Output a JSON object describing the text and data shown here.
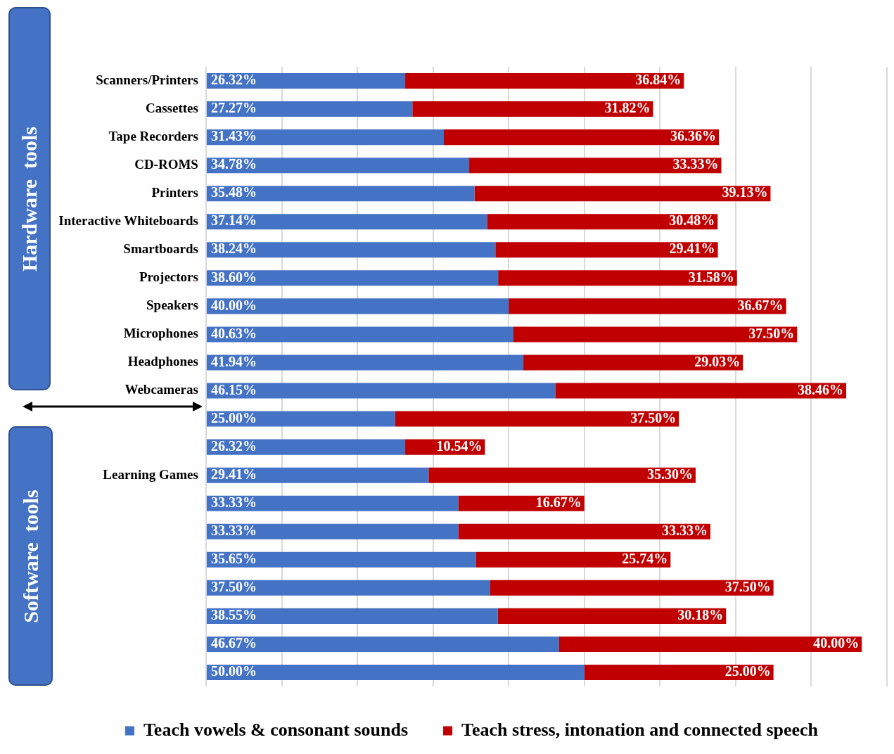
{
  "chart_data": {
    "type": "bar",
    "orientation": "horizontal",
    "stacked": true,
    "grid": "x",
    "tick_labels": "y",
    "legend": "bottom",
    "categories": [
      "Scanners/Printers",
      "Cassettes",
      "Tape Recorders",
      "CD-ROMS",
      "Printers",
      "Interactive Whiteboards",
      "Smartboards",
      "Projectors",
      "Speakers",
      "Microphones",
      "Headphones",
      "Webcameras",
      null,
      null,
      "Learning Games",
      null,
      null,
      null,
      null,
      null,
      null,
      null
    ],
    "series": [
      {
        "name": "Teach vowels & consonant sounds",
        "color": "#4472c4",
        "values": [
          26.32,
          27.27,
          31.43,
          34.78,
          35.48,
          37.14,
          38.24,
          38.6,
          40.0,
          40.63,
          41.94,
          46.15,
          25.0,
          26.32,
          29.41,
          33.33,
          33.33,
          35.65,
          37.5,
          38.55,
          46.67,
          50.0
        ],
        "value_labels": [
          "26.32%",
          "27.27%",
          "31.43%",
          "34.78%",
          "35.48%",
          "37.14%",
          "38.24%",
          "38.60%",
          "40.00%",
          "40.63%",
          "41.94%",
          "46.15%",
          "25.00%",
          "26.32%",
          "29.41%",
          "33.33%",
          "33.33%",
          "35.65%",
          "37.50%",
          "38.55%",
          "46.67%",
          "50.00%"
        ]
      },
      {
        "name": "Teach stress, intonation and connected speech",
        "color": "#c00000",
        "values": [
          36.84,
          31.82,
          36.36,
          33.33,
          39.13,
          30.48,
          29.41,
          31.58,
          36.67,
          37.5,
          29.03,
          38.46,
          37.5,
          10.54,
          35.3,
          16.67,
          33.33,
          25.74,
          37.5,
          30.18,
          40.0,
          25.0
        ],
        "value_labels": [
          "36.84%",
          "31.82%",
          "36.36%",
          "33.33%",
          "39.13%",
          "30.48%",
          "29.41%",
          "31.58%",
          "36.67%",
          "37.50%",
          "29.03%",
          "38.46%",
          "37.50%",
          "10.54%",
          "35.30%",
          "16.67%",
          "33.33%",
          "25.74%",
          "37.50%",
          "30.18%",
          "40.00%",
          "25.00%"
        ]
      }
    ],
    "annotations": [
      "Hardware  tools",
      "Software  tools"
    ]
  }
}
